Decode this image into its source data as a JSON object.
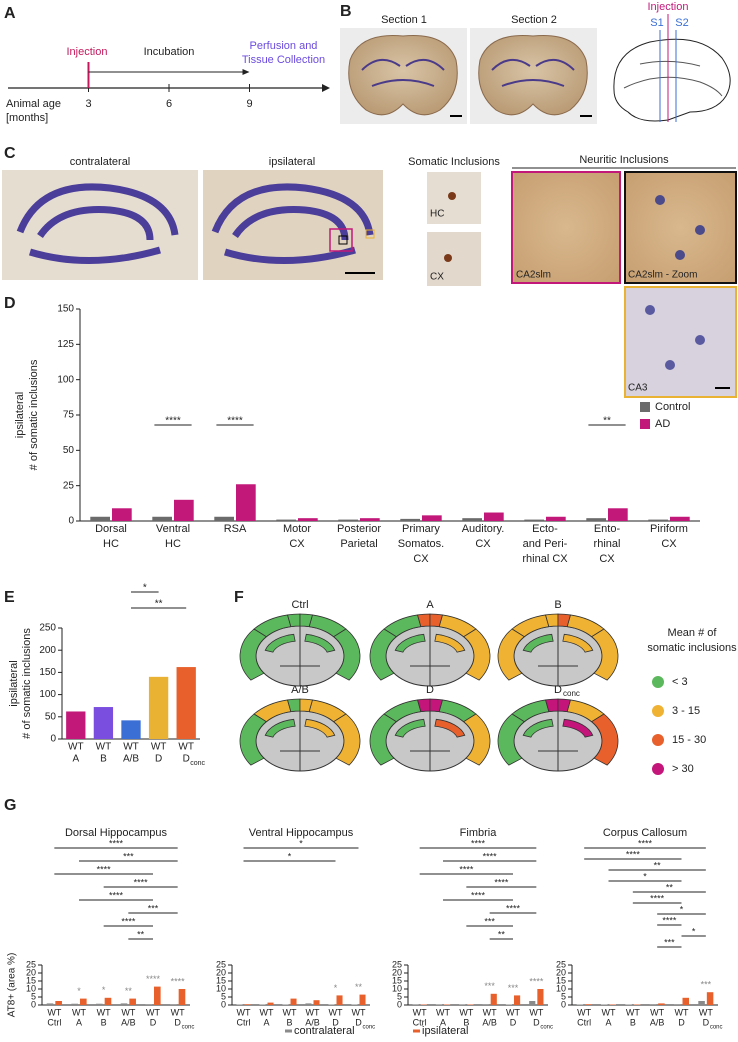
{
  "panels": [
    "A",
    "B",
    "C",
    "D",
    "E",
    "F",
    "G"
  ],
  "timeline": {
    "injection": "Injection",
    "incubation": "Incubation",
    "perfusion": [
      "Perfusion and",
      "Tissue Collection"
    ],
    "axis_label": [
      "Animal age",
      "[months]"
    ],
    "xlim": [
      0,
      12
    ],
    "xticks": [
      3,
      6,
      9
    ]
  },
  "sections": {
    "titles": [
      "Section 1",
      "Section 2"
    ],
    "injection": "Injection",
    "markers": [
      "S1",
      "S2"
    ]
  },
  "histology": {
    "contralateral": "contralateral",
    "ipsilateral": "ipsilateral",
    "somatic_title": "Somatic Inclusions",
    "somatic": [
      "HC",
      "CX"
    ],
    "neuritic_title": "Neuritic Inclusions",
    "neuritic": [
      "CA2slm",
      "CA2slm - Zoom",
      "CA3"
    ]
  },
  "chart_data": [
    {
      "type": "bar",
      "y_label": [
        "ipsilateral",
        "# of somatic inclusions"
      ],
      "categories": [
        [
          "Dorsal",
          "HC"
        ],
        [
          "Ventral",
          "HC"
        ],
        [
          "RSA"
        ],
        [
          "Motor",
          "CX"
        ],
        [
          "Posterior",
          "Parietal"
        ],
        [
          "Primary",
          "Somatos.",
          "CX"
        ],
        [
          "Auditory.",
          "CX"
        ],
        [
          "Ecto-",
          "and Peri-",
          "rhinal CX"
        ],
        [
          "Ento-",
          "rhinal",
          "CX"
        ],
        [
          "Piriform",
          "CX"
        ]
      ],
      "series": [
        {
          "name": "Control",
          "color": "#6b6b6b",
          "values": [
            3,
            3,
            3,
            1,
            1,
            1.5,
            2,
            1,
            2,
            1
          ]
        },
        {
          "name": "AD",
          "color": "#c2187a",
          "values": [
            9,
            15,
            26,
            2,
            2,
            4,
            6,
            3,
            9,
            3
          ]
        }
      ],
      "ylim": [
        0,
        150
      ],
      "yticks": [
        0,
        25,
        50,
        75,
        100,
        125,
        150
      ],
      "legend": "right",
      "annotations": [
        {
          "text": "****",
          "at": 1
        },
        {
          "text": "****",
          "at": 2
        },
        {
          "text": "**",
          "at": 8
        }
      ]
    },
    {
      "type": "bar",
      "y_label": [
        "ipsilateral",
        "# of somatic inclusions"
      ],
      "categories": [
        [
          "WT",
          "A"
        ],
        [
          "WT",
          "B"
        ],
        [
          "WT",
          "A/B"
        ],
        [
          "WT",
          "D"
        ],
        [
          "WT",
          "D",
          "conc"
        ]
      ],
      "values": [
        62,
        72,
        42,
        140,
        162
      ],
      "colors": [
        "#c2187a",
        "#7a4fe0",
        "#3b6fd6",
        "#e9b232",
        "#e8602c"
      ],
      "ylim": [
        0,
        250
      ],
      "yticks": [
        0,
        50,
        100,
        150,
        200,
        250
      ],
      "annotations": [
        {
          "text": "*",
          "from": 2,
          "to": 3
        },
        {
          "text": "**",
          "from": 2,
          "to": 4
        }
      ]
    },
    {
      "type": "bar",
      "title": "Dorsal Hippocampus",
      "y_label": "AT8+ (area %)",
      "categories": [
        [
          "WT",
          "Ctrl"
        ],
        [
          "WT",
          "A"
        ],
        [
          "WT",
          "B"
        ],
        [
          "WT",
          "A/B"
        ],
        [
          "WT",
          "D"
        ],
        [
          "WT",
          "D",
          "conc"
        ]
      ],
      "series": [
        {
          "name": "contralateral",
          "color": "#8a8a8a",
          "values": [
            1,
            0.8,
            0.8,
            1,
            0.5,
            0.5
          ]
        },
        {
          "name": "ipsilateral",
          "color": "#e8612c",
          "values": [
            2.5,
            4,
            4.5,
            4,
            11.5,
            10
          ]
        }
      ],
      "ylim": [
        0,
        25
      ],
      "yticks": [
        0,
        5,
        10,
        15,
        20,
        25
      ],
      "annotations": [
        {
          "text": "****",
          "from": 0,
          "to": 5
        },
        {
          "text": "***",
          "from": 1,
          "to": 5
        },
        {
          "text": "****",
          "from": 0,
          "to": 4
        },
        {
          "text": "****",
          "from": 2,
          "to": 5
        },
        {
          "text": "****",
          "from": 1,
          "to": 4
        },
        {
          "text": "***",
          "from": 3,
          "to": 5
        },
        {
          "text": "****",
          "from": 2,
          "to": 4
        },
        {
          "text": "**",
          "from": 3,
          "to": 4
        }
      ],
      "pair_annotations": [
        {
          "text": "*",
          "at": 1
        },
        {
          "text": "*",
          "at": 2
        },
        {
          "text": "**",
          "at": 3
        },
        {
          "text": "****",
          "at": 4
        },
        {
          "text": "****",
          "at": 5
        }
      ]
    },
    {
      "type": "bar",
      "title": "Ventral Hippocampus",
      "categories": [
        [
          "WT",
          "Ctrl"
        ],
        [
          "WT",
          "A"
        ],
        [
          "WT",
          "B"
        ],
        [
          "WT",
          "A/B"
        ],
        [
          "WT",
          "D"
        ],
        [
          "WT",
          "D",
          "conc"
        ]
      ],
      "series": [
        {
          "color": "#8a8a8a",
          "values": [
            0.3,
            0.3,
            0.3,
            1,
            0.3,
            0.3
          ]
        },
        {
          "color": "#e8612c",
          "values": [
            0.5,
            1.5,
            4,
            3,
            6,
            6.5
          ]
        }
      ],
      "ylim": [
        0,
        25
      ],
      "yticks": [
        0,
        5,
        10,
        15,
        20,
        25
      ],
      "annotations": [
        {
          "text": "*",
          "from": 0,
          "to": 5
        },
        {
          "text": "*",
          "from": 0,
          "to": 4
        }
      ],
      "pair_annotations": [
        {
          "text": "*",
          "at": 4
        },
        {
          "text": "**",
          "at": 5
        }
      ]
    },
    {
      "type": "bar",
      "title": "Fimbria",
      "categories": [
        [
          "WT",
          "Ctrl"
        ],
        [
          "WT",
          "A"
        ],
        [
          "WT",
          "B"
        ],
        [
          "WT",
          "A/B"
        ],
        [
          "WT",
          "D"
        ],
        [
          "WT",
          "D",
          "conc"
        ]
      ],
      "series": [
        {
          "color": "#8a8a8a",
          "values": [
            0.2,
            0.2,
            0.2,
            0.5,
            0.3,
            2.5
          ]
        },
        {
          "color": "#e8612c",
          "values": [
            0.3,
            0.3,
            0.3,
            7,
            6,
            10
          ]
        }
      ],
      "ylim": [
        0,
        25
      ],
      "yticks": [
        0,
        5,
        10,
        15,
        20,
        25
      ],
      "annotations": [
        {
          "text": "****",
          "from": 0,
          "to": 5
        },
        {
          "text": "****",
          "from": 1,
          "to": 5
        },
        {
          "text": "****",
          "from": 0,
          "to": 4
        },
        {
          "text": "****",
          "from": 2,
          "to": 5
        },
        {
          "text": "****",
          "from": 1,
          "to": 4
        },
        {
          "text": "****",
          "from": 3,
          "to": 5
        },
        {
          "text": "***",
          "from": 2,
          "to": 4
        },
        {
          "text": "**",
          "from": 3,
          "to": 4
        }
      ],
      "pair_annotations": [
        {
          "text": "***",
          "at": 3
        },
        {
          "text": "***",
          "at": 4
        },
        {
          "text": "****",
          "at": 5
        }
      ]
    },
    {
      "type": "bar",
      "title": "Corpus Callosum",
      "categories": [
        [
          "WT",
          "Ctrl"
        ],
        [
          "WT",
          "A"
        ],
        [
          "WT",
          "B"
        ],
        [
          "WT",
          "A/B"
        ],
        [
          "WT",
          "D"
        ],
        [
          "WT",
          "D",
          "conc"
        ]
      ],
      "series": [
        {
          "color": "#8a8a8a",
          "values": [
            0.3,
            0.3,
            0.3,
            0.5,
            0.5,
            2.5
          ]
        },
        {
          "color": "#e8612c",
          "values": [
            0.5,
            0.3,
            0.3,
            1,
            4.5,
            8
          ]
        }
      ],
      "ylim": [
        0,
        25
      ],
      "yticks": [
        0,
        5,
        10,
        15,
        20,
        25
      ],
      "annotations": [
        {
          "text": "****",
          "from": 0,
          "to": 5
        },
        {
          "text": "****",
          "from": 0,
          "to": 4
        },
        {
          "text": "**",
          "from": 1,
          "to": 5
        },
        {
          "text": "*",
          "from": 1,
          "to": 4
        },
        {
          "text": "**",
          "from": 2,
          "to": 5
        },
        {
          "text": "****",
          "from": 2,
          "to": 4
        },
        {
          "text": "*",
          "from": 3,
          "to": 5
        },
        {
          "text": "****",
          "from": 3,
          "to": 4
        },
        {
          "text": "*",
          "from": 4,
          "to": 5
        },
        {
          "text": "***",
          "from": 3,
          "to": 4
        }
      ],
      "pair_annotations": [
        {
          "text": "***",
          "at": 5
        }
      ]
    }
  ],
  "map": {
    "titles": [
      [
        "Ctrl"
      ],
      [
        "A"
      ],
      [
        "B"
      ],
      [
        "A/B"
      ],
      [
        "D"
      ],
      [
        "D",
        "conc"
      ]
    ],
    "legend_title": [
      "Mean # of",
      "somatic inclusions"
    ],
    "levels": [
      {
        "label": "< 3",
        "color": "#5cb85c"
      },
      {
        "label": "3 - 15",
        "color": "#efb233"
      },
      {
        "label": "15 - 30",
        "color": "#e8602c"
      },
      {
        "label": "> 30",
        "color": "#c4157a"
      }
    ],
    "left": [
      [
        0,
        0,
        0,
        0
      ],
      [
        0,
        0,
        0,
        2
      ],
      [
        1,
        1,
        0,
        1
      ],
      [
        1,
        0,
        0,
        0
      ],
      [
        0,
        0,
        0,
        3
      ],
      [
        0,
        0,
        0,
        3
      ]
    ],
    "right": [
      [
        0,
        0,
        0,
        0
      ],
      [
        1,
        1,
        1,
        2
      ],
      [
        1,
        1,
        1,
        2
      ],
      [
        1,
        1,
        1,
        1
      ],
      [
        0,
        1,
        2,
        3
      ],
      [
        1,
        2,
        3,
        3
      ]
    ]
  }
}
